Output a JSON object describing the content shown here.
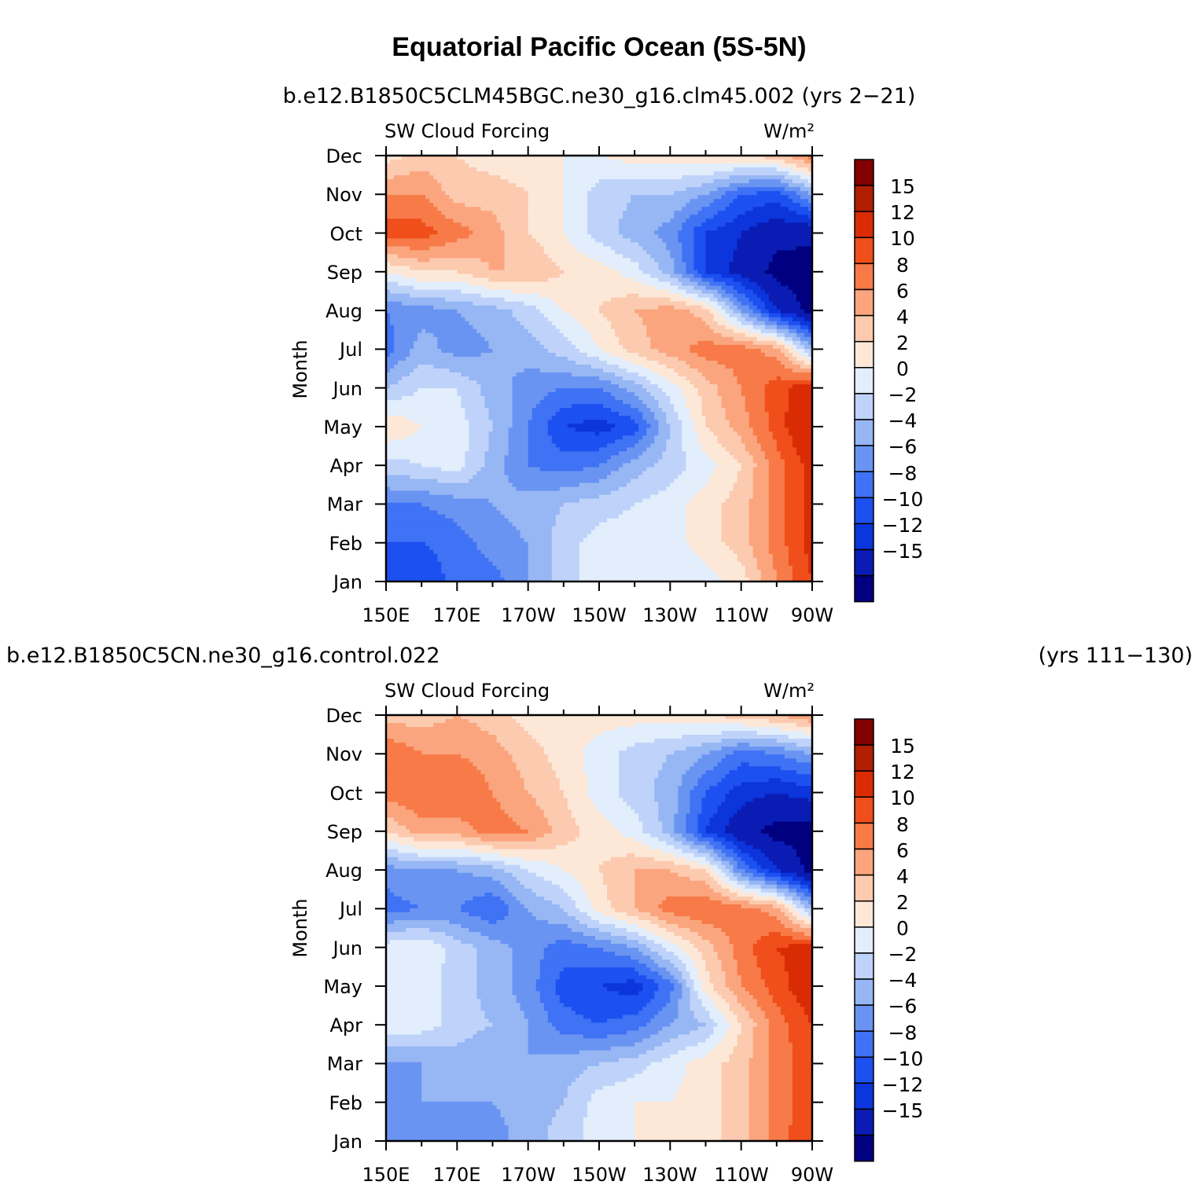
{
  "title": "Equatorial Pacific Ocean (5S-5N)",
  "colorbar": {
    "labels": [
      "15",
      "12",
      "10",
      "8",
      "6",
      "4",
      "2",
      "0",
      "−2",
      "−4",
      "−6",
      "−8",
      "−10",
      "−12",
      "−15"
    ],
    "colors": [
      "#000080",
      "#0a1cb4",
      "#0c35dc",
      "#1c50f0",
      "#3f72f4",
      "#6a94f2",
      "#96b6f4",
      "#bfd3fa",
      "#e2eefc",
      "#fde8d8",
      "#fccaaf",
      "#fba57e",
      "#f77a48",
      "#f04e1a",
      "#da2c04",
      "#b01e04",
      "#820000"
    ]
  },
  "chart_data": [
    {
      "type": "heatmap",
      "title": "SW Cloud Forcing",
      "subtitle_left": "b.e12.B1850C5CLM45BGC.ne30_g16.clm45.002 (yrs 2−21)",
      "subtitle_right": "",
      "units": "W/m²",
      "ylabel": "Month",
      "xlabel": "",
      "x_ticks": [
        "150E",
        "170E",
        "170W",
        "150W",
        "130W",
        "110W",
        "90W"
      ],
      "y_ticks": [
        "Jan",
        "Feb",
        "Mar",
        "Apr",
        "May",
        "Jun",
        "Jul",
        "Aug",
        "Sep",
        "Oct",
        "Nov",
        "Dec"
      ],
      "x_longitudes": [
        150,
        160,
        170,
        180,
        190,
        200,
        210,
        220,
        230,
        240,
        250,
        260,
        270
      ],
      "contour_levels": [
        -15,
        -12,
        -10,
        -8,
        -6,
        -4,
        -2,
        0,
        2,
        4,
        6,
        8,
        10,
        12,
        15
      ],
      "values": [
        [
          -9,
          -10,
          -7,
          -7,
          -4,
          -1,
          1,
          1,
          0,
          1,
          3,
          8,
          12
        ],
        [
          -8,
          -8,
          -7,
          -5,
          -4,
          -1,
          1,
          1,
          1,
          3,
          5,
          9,
          13
        ],
        [
          -6,
          -6,
          -5,
          -4,
          -3,
          -2,
          -1,
          0,
          1,
          3,
          5,
          9,
          13
        ],
        [
          -1,
          0,
          1,
          -3,
          -6,
          -7,
          -6,
          -3,
          -1,
          1,
          4,
          9,
          13
        ],
        [
          4,
          2,
          1,
          -2,
          -6,
          -10,
          -11,
          -9,
          -2,
          4,
          7,
          11,
          15
        ],
        [
          -2,
          0,
          0,
          -3,
          -5,
          -6,
          -6,
          -3,
          1,
          5,
          8,
          11,
          14
        ],
        [
          -7,
          -3,
          -5,
          -4,
          -3,
          -1,
          2,
          5,
          7,
          9,
          9,
          7,
          -3
        ],
        [
          -6,
          -5,
          -4,
          -3,
          -1,
          2,
          4,
          6,
          7,
          5,
          -4,
          -12,
          -16
        ],
        [
          2,
          4,
          4,
          6,
          6,
          4,
          3,
          1,
          -3,
          -10,
          -13,
          -16,
          -17
        ],
        [
          11,
          11,
          9,
          7,
          4,
          2,
          -1,
          -3,
          -5,
          -10,
          -12,
          -14,
          -14
        ],
        [
          8,
          8,
          5,
          5,
          4,
          2,
          -1,
          -2,
          -2,
          -4,
          -8,
          -9,
          -4
        ],
        [
          3,
          5,
          4,
          3,
          3,
          2,
          2,
          3,
          3,
          4,
          4,
          5,
          9
        ]
      ]
    },
    {
      "type": "heatmap",
      "title": "SW Cloud Forcing",
      "subtitle_left": "b.e12.B1850C5CN.ne30_g16.control.022",
      "subtitle_right": "(yrs 111−130)",
      "units": "W/m²",
      "ylabel": "Month",
      "xlabel": "",
      "x_ticks": [
        "150E",
        "170E",
        "170W",
        "150W",
        "130W",
        "110W",
        "90W"
      ],
      "y_ticks": [
        "Jan",
        "Feb",
        "Mar",
        "Apr",
        "May",
        "Jun",
        "Jul",
        "Aug",
        "Sep",
        "Oct",
        "Nov",
        "Dec"
      ],
      "x_longitudes": [
        150,
        160,
        170,
        180,
        190,
        200,
        210,
        220,
        230,
        240,
        250,
        260,
        270
      ],
      "contour_levels": [
        -15,
        -12,
        -10,
        -8,
        -6,
        -4,
        -2,
        0,
        2,
        4,
        6,
        8,
        10,
        12,
        15
      ],
      "values": [
        [
          -5,
          -6,
          -5,
          -5,
          -3,
          -1,
          1,
          2,
          2,
          3,
          5,
          9,
          12
        ],
        [
          -5,
          -4,
          -4,
          -4,
          -3,
          -2,
          1,
          2,
          2,
          3,
          5,
          9,
          11
        ],
        [
          -4,
          -4,
          -3,
          -4,
          -4,
          -3,
          -2,
          -1,
          1,
          3,
          5,
          9,
          11
        ],
        [
          1,
          1,
          -1,
          -2,
          -4,
          -7,
          -8,
          -7,
          -4,
          -2,
          4,
          9,
          12
        ],
        [
          2,
          1,
          -1,
          -3,
          -5,
          -9,
          -10,
          -11,
          -7,
          3,
          8,
          11,
          14
        ],
        [
          1,
          2,
          -1,
          -3,
          -5,
          -7,
          -6,
          -4,
          1,
          5,
          9,
          12,
          13
        ],
        [
          -7,
          -6,
          -6,
          -8,
          -4,
          -2,
          3,
          6,
          9,
          10,
          9,
          7,
          -3
        ],
        [
          -5,
          -4,
          -4,
          -3,
          0,
          2,
          4,
          6,
          6,
          4,
          -6,
          -12,
          -16
        ],
        [
          4,
          7,
          7,
          9,
          8,
          5,
          3,
          1,
          -3,
          -10,
          -14,
          -16,
          -16
        ],
        [
          9,
          10,
          10,
          8,
          6,
          4,
          1,
          -1,
          -3,
          -8,
          -11,
          -12,
          -11
        ],
        [
          10,
          8,
          8,
          7,
          5,
          3,
          1,
          -1,
          -2,
          -4,
          -7,
          -6,
          -4
        ],
        [
          5,
          5,
          6,
          5,
          3,
          3,
          3,
          3,
          3,
          4,
          5,
          6,
          8
        ]
      ]
    }
  ]
}
